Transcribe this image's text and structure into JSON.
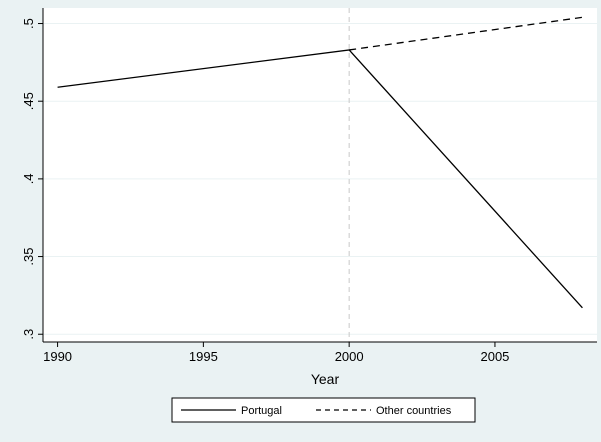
{
  "chart_data": {
    "type": "line",
    "title": "",
    "xlabel": "Year",
    "ylabel": "",
    "xlim": [
      1989.5,
      2008.5
    ],
    "ylim": [
      0.295,
      0.51
    ],
    "x_ticks": [
      1990,
      1995,
      2000,
      2005
    ],
    "x_tick_labels": [
      "1990",
      "1995",
      "2000",
      "2005"
    ],
    "y_ticks": [
      0.3,
      0.35,
      0.4,
      0.45,
      0.5
    ],
    "y_tick_labels": [
      ".3",
      ".35",
      ".4",
      ".45",
      ".5"
    ],
    "grid": true,
    "reference_line_x": 2000,
    "legend_position": "bottom",
    "series": [
      {
        "name": "Portugal",
        "style": "solid",
        "color": "#000000",
        "points": [
          [
            1990,
            0.459
          ],
          [
            2000,
            0.483
          ],
          [
            2008,
            0.317
          ]
        ]
      },
      {
        "name": "Other countries",
        "style": "dashed",
        "color": "#000000",
        "points": [
          [
            2000,
            0.483
          ],
          [
            2008,
            0.504
          ]
        ]
      }
    ]
  },
  "colors": {
    "background": "#eaf2f3",
    "plot_background": "#ffffff",
    "grid": "#eaf2f3",
    "reference_line": "#c8c8c8"
  }
}
